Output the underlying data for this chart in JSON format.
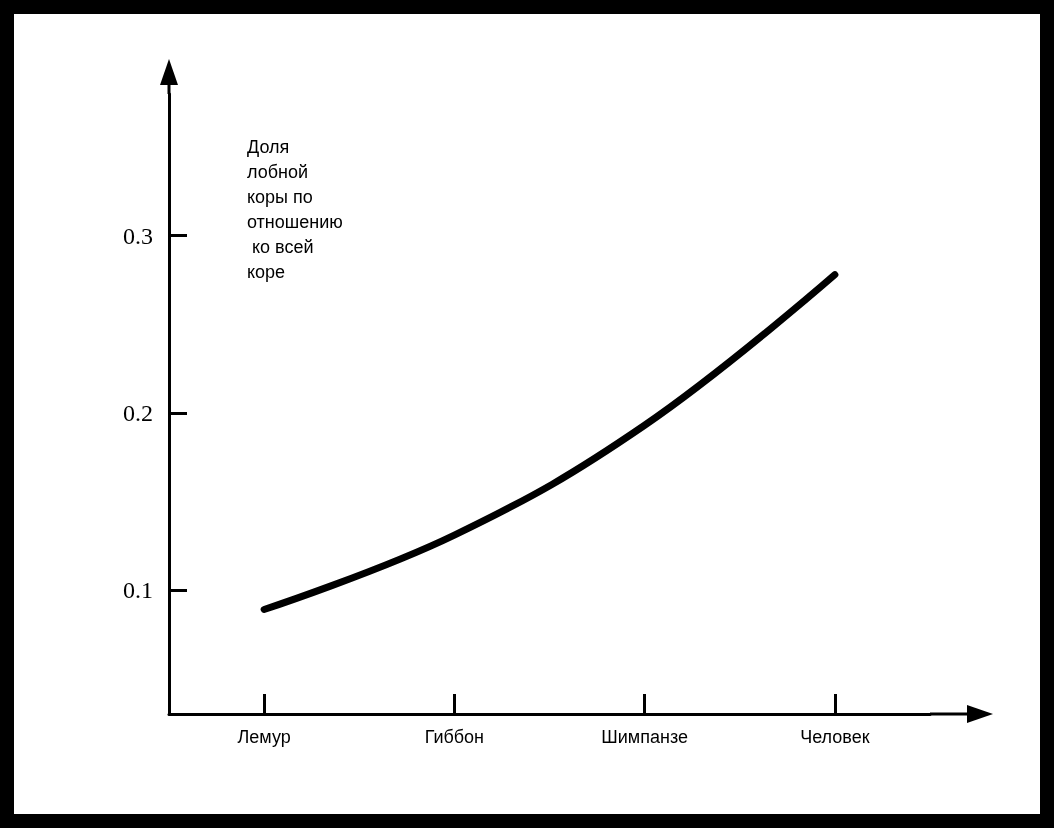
{
  "chart_data": {
    "type": "line",
    "ylabel": "Доля лобной коры по отношению ко всей коре",
    "categories": [
      "Лемур",
      "Гиббон",
      "Шимпанзе",
      "Человек"
    ],
    "series": [
      {
        "color": "#000000",
        "values": [
          0.089,
          0.131,
          0.193,
          0.278
        ]
      }
    ],
    "ylim": [
      0.03,
      0.38
    ],
    "yticks": [
      0.1,
      0.2,
      0.3
    ],
    "grid": false,
    "marker": "none",
    "line_style": "solid"
  }
}
